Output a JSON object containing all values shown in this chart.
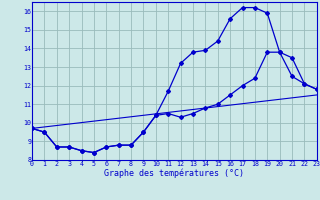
{
  "xlabel": "Graphe des températures (°C)",
  "bg_color": "#cce8e8",
  "line_color": "#0000cc",
  "grid_color": "#99bbbb",
  "xlim": [
    0,
    23
  ],
  "ylim": [
    8,
    16.5
  ],
  "yticks": [
    8,
    9,
    10,
    11,
    12,
    13,
    14,
    15,
    16
  ],
  "xticks": [
    0,
    1,
    2,
    3,
    4,
    5,
    6,
    7,
    8,
    9,
    10,
    11,
    12,
    13,
    14,
    15,
    16,
    17,
    18,
    19,
    20,
    21,
    22,
    23
  ],
  "curve1_x": [
    0,
    1,
    2,
    3,
    4,
    5,
    6,
    7,
    8,
    9,
    10,
    11,
    12,
    13,
    14,
    15,
    16,
    17,
    18,
    19,
    20,
    21,
    22,
    23
  ],
  "curve1_y": [
    9.7,
    9.5,
    8.7,
    8.7,
    8.5,
    8.4,
    8.7,
    8.8,
    8.8,
    9.5,
    10.4,
    11.7,
    13.2,
    13.8,
    13.9,
    14.4,
    15.6,
    16.2,
    16.2,
    15.9,
    13.8,
    12.5,
    12.1,
    11.8
  ],
  "curve2_x": [
    0,
    1,
    2,
    3,
    4,
    5,
    6,
    7,
    8,
    9,
    10,
    11,
    12,
    13,
    14,
    15,
    16,
    17,
    18,
    19,
    20,
    21,
    22,
    23
  ],
  "curve2_y": [
    9.7,
    9.5,
    8.7,
    8.7,
    8.5,
    8.4,
    8.7,
    8.8,
    8.8,
    9.5,
    10.4,
    10.5,
    10.3,
    10.5,
    10.8,
    11.0,
    11.5,
    12.0,
    12.4,
    13.8,
    13.8,
    13.5,
    12.1,
    11.8
  ],
  "curve3_x": [
    0,
    23
  ],
  "curve3_y": [
    9.7,
    11.5
  ]
}
